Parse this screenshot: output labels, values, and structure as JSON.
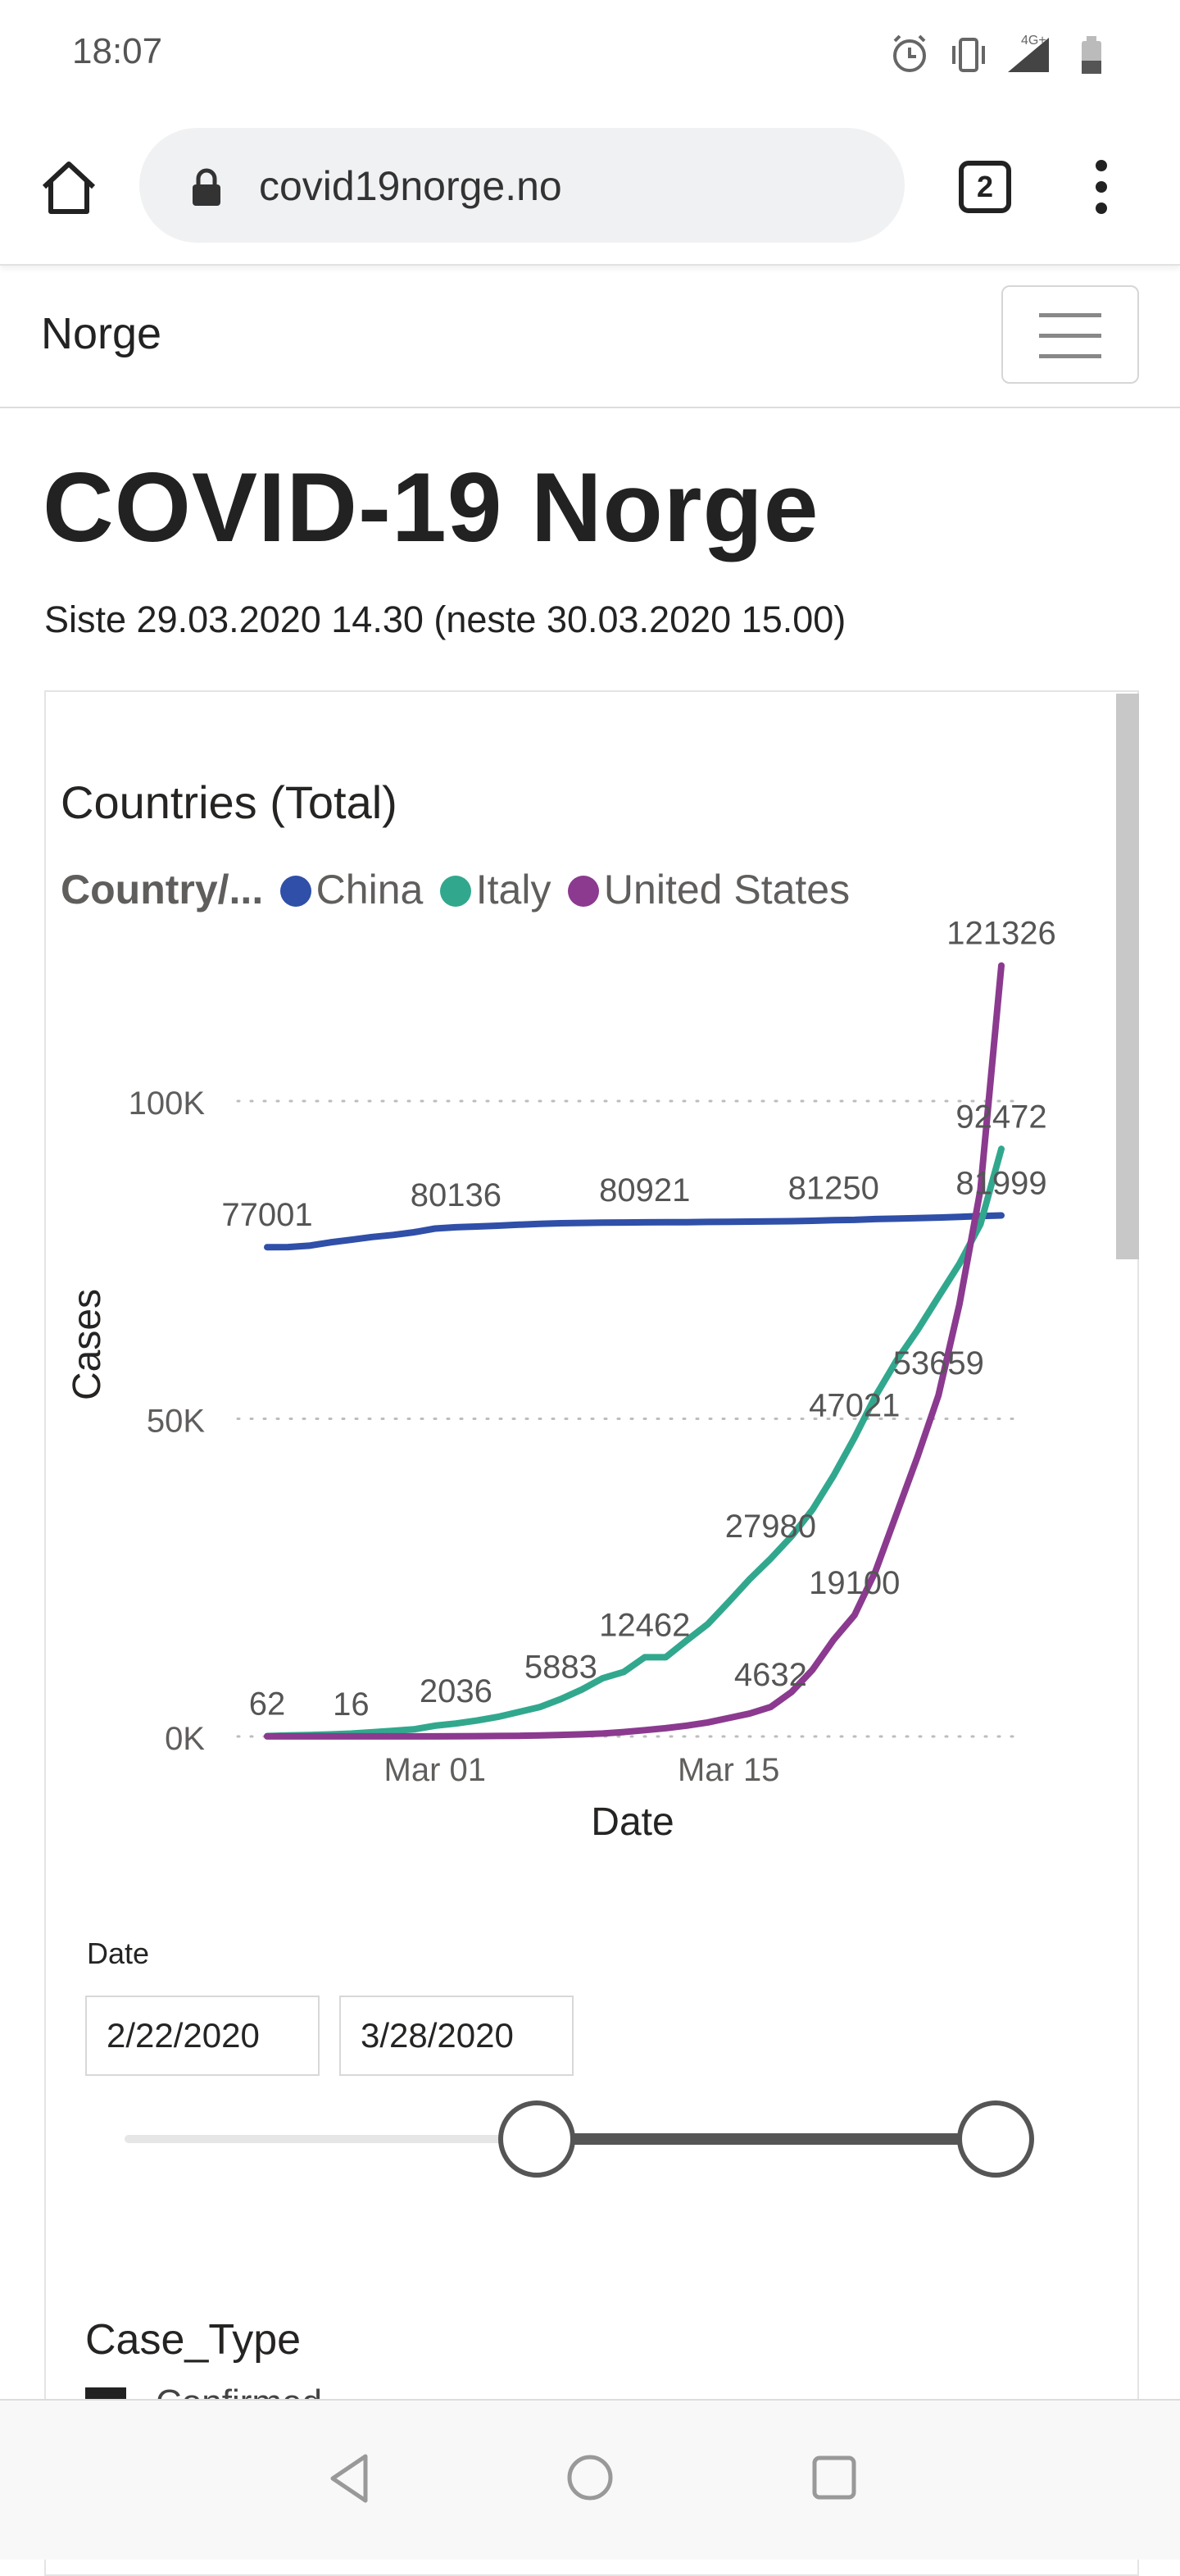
{
  "status_bar": {
    "time": "18:07",
    "network": "4G+"
  },
  "browser": {
    "url": "covid19norge.no",
    "tab_count": "2"
  },
  "site": {
    "brand": "Norge"
  },
  "page": {
    "title": "COVID-19 Norge",
    "update_line": "Siste 29.03.2020 14.30 (neste 30.03.2020 15.00)"
  },
  "chart_data": {
    "type": "line",
    "title": "Countries (Total)",
    "legend_title": "Country/...",
    "xlabel": "Date",
    "ylabel": "Cases",
    "y_ticks": [
      "100K",
      "50K",
      "0K"
    ],
    "x_ticks": [
      "Mar 01",
      "Mar 15"
    ],
    "ylim": [
      0,
      125000
    ],
    "legend_position": "top-left",
    "grid": true,
    "x_dates": [
      "2020-02-22",
      "2020-02-23",
      "2020-02-24",
      "2020-02-25",
      "2020-02-26",
      "2020-02-27",
      "2020-02-28",
      "2020-02-29",
      "2020-03-01",
      "2020-03-02",
      "2020-03-03",
      "2020-03-04",
      "2020-03-05",
      "2020-03-06",
      "2020-03-07",
      "2020-03-08",
      "2020-03-09",
      "2020-03-10",
      "2020-03-11",
      "2020-03-12",
      "2020-03-13",
      "2020-03-14",
      "2020-03-15",
      "2020-03-16",
      "2020-03-17",
      "2020-03-18",
      "2020-03-19",
      "2020-03-20",
      "2020-03-21",
      "2020-03-22",
      "2020-03-23",
      "2020-03-24",
      "2020-03-25",
      "2020-03-26",
      "2020-03-27",
      "2020-03-28"
    ],
    "series": [
      {
        "name": "China",
        "color": "#2f4fa8",
        "values": [
          77001,
          77022,
          77241,
          77754,
          78166,
          78600,
          78928,
          79356,
          79932,
          80136,
          80261,
          80386,
          80537,
          80690,
          80770,
          80823,
          80860,
          80887,
          80921,
          80932,
          80945,
          80977,
          81003,
          81033,
          81058,
          81102,
          81156,
          81250,
          81305,
          81435,
          81498,
          81591,
          81661,
          81782,
          81897,
          81999
        ]
      },
      {
        "name": "Italy",
        "color": "#31a88d",
        "values": [
          62,
          155,
          229,
          322,
          453,
          655,
          888,
          1128,
          1694,
          2036,
          2502,
          3089,
          3858,
          4636,
          5883,
          7375,
          9172,
          10149,
          12462,
          12462,
          15113,
          17660,
          21157,
          24747,
          27980,
          31506,
          35713,
          41035,
          47021,
          53578,
          59138,
          63927,
          69176,
          74386,
          80589,
          92472
        ]
      },
      {
        "name": "United States",
        "color": "#8b3a8f",
        "values": [
          16,
          16,
          16,
          16,
          16,
          16,
          16,
          16,
          16,
          30,
          53,
          80,
          108,
          160,
          250,
          340,
          470,
          700,
          1000,
          1300,
          1700,
          2200,
          2900,
          3600,
          4632,
          7000,
          10500,
          15200,
          19100,
          26000,
          35000,
          44000,
          53659,
          68000,
          86000,
          121326
        ]
      }
    ],
    "data_labels": [
      {
        "text": "77001",
        "series": "China",
        "x": "2020-02-22",
        "y": 77001
      },
      {
        "text": "80136",
        "series": "China",
        "x": "2020-03-02",
        "y": 80136
      },
      {
        "text": "80921",
        "series": "China",
        "x": "2020-03-11",
        "y": 80921
      },
      {
        "text": "81250",
        "series": "China",
        "x": "2020-03-20",
        "y": 81250
      },
      {
        "text": "81999",
        "series": "China",
        "x": "2020-03-28",
        "y": 81999
      },
      {
        "text": "62",
        "series": "Italy",
        "x": "2020-02-22",
        "y": 62
      },
      {
        "text": "2036",
        "series": "Italy",
        "x": "2020-03-02",
        "y": 2036
      },
      {
        "text": "5883",
        "series": "Italy",
        "x": "2020-03-07",
        "y": 5883
      },
      {
        "text": "12462",
        "series": "Italy",
        "x": "2020-03-11",
        "y": 12462
      },
      {
        "text": "27980",
        "series": "Italy",
        "x": "2020-03-17",
        "y": 27980
      },
      {
        "text": "47021",
        "series": "Italy",
        "x": "2020-03-21",
        "y": 47021
      },
      {
        "text": "92472",
        "series": "Italy",
        "x": "2020-03-28",
        "y": 92472
      },
      {
        "text": "16",
        "series": "United States",
        "x": "2020-02-26",
        "y": 16
      },
      {
        "text": "4632",
        "series": "United States",
        "x": "2020-03-17",
        "y": 4632
      },
      {
        "text": "19100",
        "series": "United States",
        "x": "2020-03-21",
        "y": 19100
      },
      {
        "text": "53659",
        "series": "United States",
        "x": "2020-03-25",
        "y": 53659
      },
      {
        "text": "121326",
        "series": "United States",
        "x": "2020-03-28",
        "y": 121326
      }
    ]
  },
  "slicer": {
    "label": "Date",
    "start": "2/22/2020",
    "end": "3/28/2020",
    "range_start_fraction": 0.5,
    "range_end_fraction": 1.0
  },
  "case_type": {
    "title": "Case_Type",
    "option": "Confirmed"
  },
  "icons": {
    "home": "home-icon",
    "lock": "lock-icon",
    "menu": "more-vertical-icon",
    "back": "back-icon",
    "home_nav": "home-circle-icon",
    "recents": "recents-icon"
  }
}
